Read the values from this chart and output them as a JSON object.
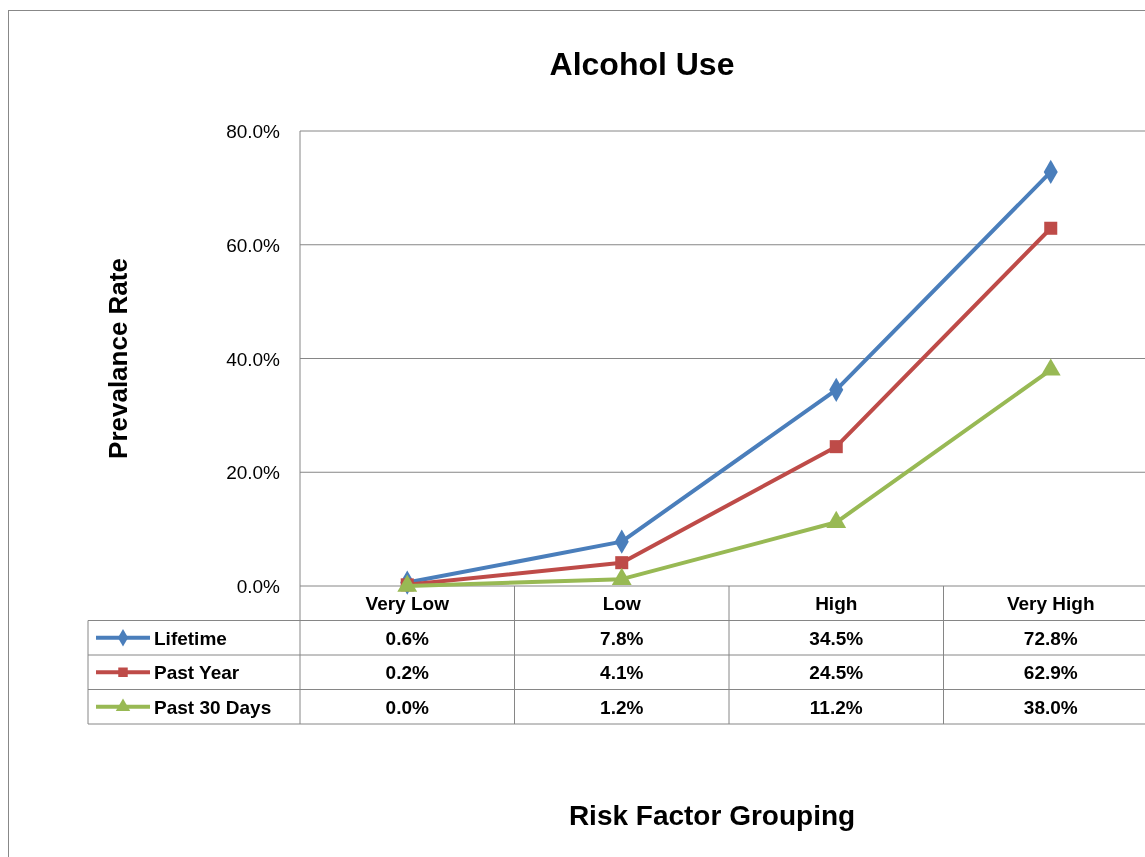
{
  "chart_data": {
    "type": "line",
    "title": "Alcohol Use",
    "ylabel": "Prevalance Rate",
    "annotations": [
      "Risk Factor Grouping"
    ],
    "categories": [
      "Very Low",
      "Low",
      "High",
      "Very High"
    ],
    "series": [
      {
        "name": "Lifetime",
        "color": "#4a7ebb",
        "marker": "diamond",
        "values": [
          0.6,
          7.8,
          34.5,
          72.8
        ],
        "value_labels": [
          "0.6%",
          "7.8%",
          "34.5%",
          "72.8%"
        ]
      },
      {
        "name": "Past Year",
        "color": "#be4b48",
        "marker": "square",
        "values": [
          0.2,
          4.1,
          24.5,
          62.9
        ],
        "value_labels": [
          "0.2%",
          "4.1%",
          "24.5%",
          "62.9%"
        ]
      },
      {
        "name": "Past 30 Days",
        "color": "#98b954",
        "marker": "triangle",
        "values": [
          0.0,
          1.2,
          11.2,
          38.0
        ],
        "value_labels": [
          "0.0%",
          "1.2%",
          "11.2%",
          "38.0%"
        ]
      }
    ],
    "ylim": [
      0,
      80
    ],
    "yticks": [
      {
        "value": 0,
        "label": "0.0%"
      },
      {
        "value": 20,
        "label": "20.0%"
      },
      {
        "value": 40,
        "label": "40.0%"
      },
      {
        "value": 60,
        "label": "60.0%"
      },
      {
        "value": 80,
        "label": "80.0%"
      }
    ],
    "grid": "y",
    "legend": "bottom left",
    "line_style": "solid"
  }
}
